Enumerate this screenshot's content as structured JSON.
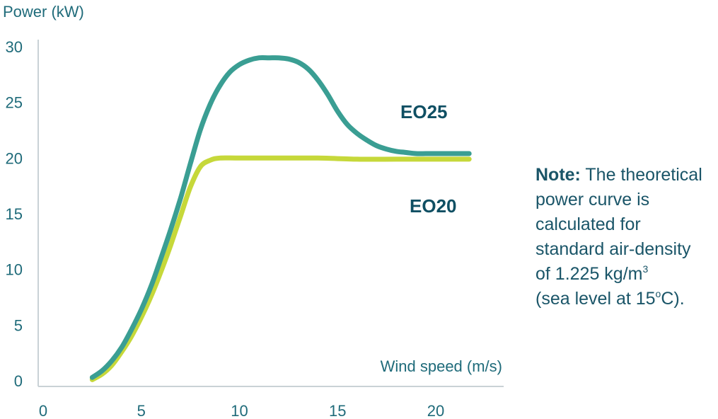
{
  "chart_data": {
    "type": "line",
    "ylabel": "Power (kW)",
    "xlabel": "Wind speed (m/s)",
    "xlim": [
      0,
      23
    ],
    "ylim": [
      0,
      30
    ],
    "x_ticks": [
      0,
      5,
      10,
      15,
      20
    ],
    "y_ticks": [
      0,
      5,
      10,
      15,
      20,
      25,
      30
    ],
    "grid": false,
    "series": [
      {
        "name": "EO20",
        "color": "#c6d83a",
        "x": [
          2.5,
          3,
          3.5,
          4,
          4.5,
          5,
          5.5,
          6,
          6.5,
          7,
          7.5,
          8,
          8.5,
          9,
          10,
          12,
          14,
          16,
          18,
          20,
          21.7
        ],
        "y": [
          0.1,
          0.6,
          1.4,
          2.6,
          4.0,
          5.7,
          7.6,
          9.8,
          12.2,
          14.8,
          17.4,
          19.2,
          19.8,
          20.0,
          20.0,
          20.0,
          20.0,
          19.9,
          19.9,
          19.9,
          19.9
        ]
      },
      {
        "name": "EO25",
        "color": "#3a9e93",
        "x": [
          2.5,
          3,
          3.5,
          4,
          4.5,
          5,
          5.5,
          6,
          6.5,
          7,
          7.5,
          8,
          8.5,
          9,
          9.5,
          10,
          10.5,
          11,
          11.5,
          12,
          12.5,
          13,
          13.5,
          14,
          14.5,
          15,
          15.5,
          16,
          16.5,
          17,
          17.5,
          18,
          18.5,
          19,
          19.5,
          20,
          20.5,
          21,
          21.7
        ],
        "y": [
          0.3,
          0.9,
          1.8,
          3.0,
          4.6,
          6.4,
          8.5,
          11.0,
          13.6,
          16.4,
          19.5,
          22.5,
          24.8,
          26.5,
          27.7,
          28.4,
          28.8,
          29.0,
          29.0,
          29.0,
          28.9,
          28.6,
          28.0,
          27.0,
          25.7,
          24.2,
          23.0,
          22.2,
          21.6,
          21.1,
          20.8,
          20.6,
          20.5,
          20.4,
          20.4,
          20.4,
          20.4,
          20.4,
          20.4
        ]
      }
    ],
    "series_labels": [
      "EO25",
      "EO20"
    ]
  },
  "note": {
    "heading": "Note:",
    "line1": "The theoretical",
    "line2": "power curve is",
    "line3": "calculated for",
    "line4": "standard air-density",
    "line5_before": "of 1.225 kg/m",
    "line5_sup": "3",
    "line6_before": "(sea level at 15",
    "line6_sup": "o",
    "line6_after": "C)."
  }
}
